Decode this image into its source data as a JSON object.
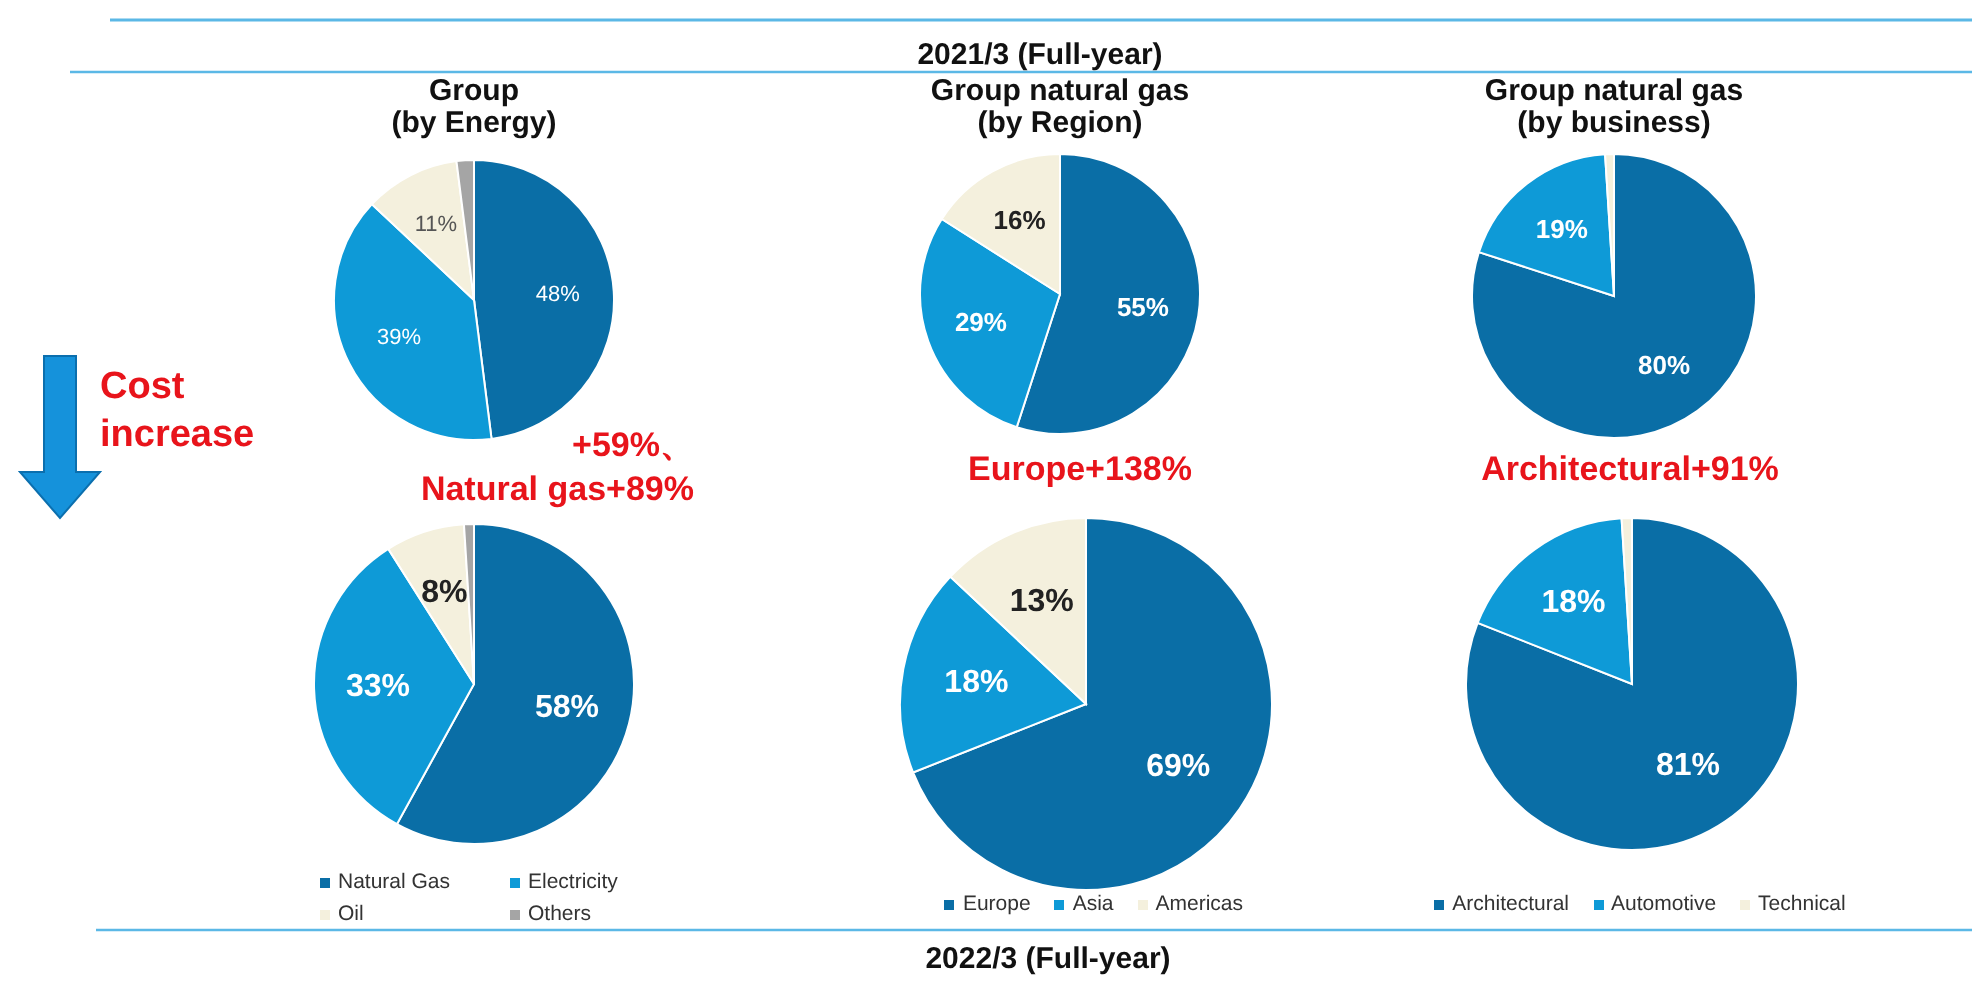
{
  "chart_data": [
    {
      "type": "pie",
      "title": "Group (by Energy)",
      "categories": [
        null,
        null,
        null,
        null
      ],
      "values": [
        48,
        39,
        11,
        2
      ],
      "colors": [
        "#0a6ea6",
        "#0e9ad7",
        "#f4f0dd",
        "#a5a5a5"
      ],
      "value_labels": [
        "48%",
        "39%",
        "11%",
        null
      ],
      "annotations": [
        "2021/3 (Full-year)"
      ]
    },
    {
      "type": "pie",
      "title": "Group natural gas (by Region)",
      "categories": [
        null,
        null,
        null
      ],
      "values": [
        55,
        29,
        16
      ],
      "colors": [
        "#0a6ea6",
        "#0e9ad7",
        "#f4f0dd"
      ],
      "value_labels": [
        "55%",
        "29%",
        "16%"
      ]
    },
    {
      "type": "pie",
      "title": "Group natural gas (by business)",
      "categories": [
        null,
        null,
        null
      ],
      "values": [
        80,
        19,
        1
      ],
      "colors": [
        "#0a6ea6",
        "#0e9ad7",
        "#f4f0dd"
      ],
      "value_labels": [
        "80%",
        "19%",
        null
      ]
    },
    {
      "type": "pie",
      "categories": [
        "Natural Gas",
        "Electricity",
        "Oil",
        "Others"
      ],
      "values": [
        58,
        33,
        8,
        1
      ],
      "colors": [
        "#0a6ea6",
        "#0e9ad7",
        "#f4f0dd",
        "#a5a5a5"
      ],
      "value_labels": [
        "58%",
        "33%",
        "8%",
        null
      ],
      "legend": "bottom",
      "annotations": [
        "+59%、 Natural gas+89%",
        "Cost increase",
        "2022/3 (Full-year)"
      ]
    },
    {
      "type": "pie",
      "categories": [
        "Europe",
        "Asia",
        "Americas"
      ],
      "values": [
        69,
        18,
        13
      ],
      "colors": [
        "#0a6ea6",
        "#0e9ad7",
        "#f4f0dd"
      ],
      "value_labels": [
        "69%",
        "18%",
        "13%"
      ],
      "legend": "bottom",
      "annotations": [
        "Europe+138%"
      ]
    },
    {
      "type": "pie",
      "categories": [
        "Architectural",
        "Automotive",
        "Technical"
      ],
      "values": [
        81,
        18,
        1
      ],
      "colors": [
        "#0a6ea6",
        "#0e9ad7",
        "#f4f0dd"
      ],
      "value_labels": [
        "81%",
        "18%",
        null
      ],
      "legend": "bottom",
      "annotations": [
        "Architectural+91%"
      ]
    }
  ]
}
